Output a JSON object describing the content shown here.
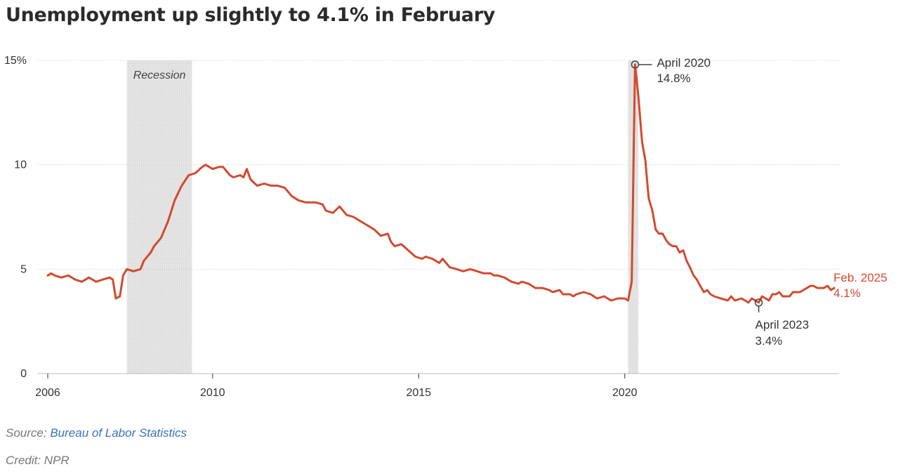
{
  "title": "Unemployment up slightly to 4.1% in February",
  "footer": {
    "source_label": "Source:",
    "source_link": "Bureau of Labor Statistics",
    "credit": "Credit: NPR"
  },
  "colors": {
    "line": "#d24a2f",
    "recession_shade": "#dddddd",
    "grid": "#cccccc",
    "link": "#3c6fbf"
  },
  "chart_data": {
    "type": "line",
    "title": "Unemployment up slightly to 4.1% in February",
    "xlabel": "",
    "ylabel": "",
    "unit": "%",
    "xlim": [
      2006.0,
      2025.2
    ],
    "ylim": [
      0,
      15
    ],
    "grid": true,
    "legend": "none",
    "x_ticks": [
      {
        "value": 2006,
        "label": "2006"
      },
      {
        "value": 2010,
        "label": "2010"
      },
      {
        "value": 2015,
        "label": "2015"
      },
      {
        "value": 2020,
        "label": "2020"
      }
    ],
    "y_ticks": [
      {
        "value": 0,
        "label": "0"
      },
      {
        "value": 5,
        "label": "5"
      },
      {
        "value": 10,
        "label": "10"
      },
      {
        "value": 15,
        "label": "15%"
      }
    ],
    "recessions": [
      {
        "start": 2007.92,
        "end": 2009.5,
        "label": "Recession"
      },
      {
        "start": 2020.08,
        "end": 2020.33,
        "label": ""
      }
    ],
    "annotations": [
      {
        "x": 2020.25,
        "y": 14.8,
        "label": "April 2020",
        "value": "14.8%"
      },
      {
        "x": 2023.25,
        "y": 3.4,
        "label": "April 2023",
        "value": "3.4%"
      },
      {
        "x": 2025.08,
        "y": 4.1,
        "label": "Feb. 2025",
        "value": "4.1%"
      }
    ],
    "series": [
      {
        "values": [
          [
            2006.0,
            4.7
          ],
          [
            2006.08,
            4.8
          ],
          [
            2006.17,
            4.7
          ],
          [
            2006.33,
            4.6
          ],
          [
            2006.5,
            4.7
          ],
          [
            2006.67,
            4.5
          ],
          [
            2006.83,
            4.4
          ],
          [
            2007.0,
            4.6
          ],
          [
            2007.17,
            4.4
          ],
          [
            2007.33,
            4.5
          ],
          [
            2007.5,
            4.6
          ],
          [
            2007.58,
            4.5
          ],
          [
            2007.65,
            3.6
          ],
          [
            2007.75,
            3.7
          ],
          [
            2007.83,
            4.7
          ],
          [
            2007.92,
            5.0
          ],
          [
            2008.08,
            4.9
          ],
          [
            2008.25,
            5.0
          ],
          [
            2008.33,
            5.4
          ],
          [
            2008.5,
            5.8
          ],
          [
            2008.58,
            6.1
          ],
          [
            2008.75,
            6.5
          ],
          [
            2008.92,
            7.3
          ],
          [
            2009.08,
            8.3
          ],
          [
            2009.25,
            9.0
          ],
          [
            2009.42,
            9.5
          ],
          [
            2009.58,
            9.6
          ],
          [
            2009.75,
            9.9
          ],
          [
            2009.83,
            10.0
          ],
          [
            2010.0,
            9.8
          ],
          [
            2010.17,
            9.9
          ],
          [
            2010.25,
            9.9
          ],
          [
            2010.42,
            9.5
          ],
          [
            2010.5,
            9.4
          ],
          [
            2010.67,
            9.5
          ],
          [
            2010.75,
            9.4
          ],
          [
            2010.83,
            9.8
          ],
          [
            2010.92,
            9.3
          ],
          [
            2011.08,
            9.0
          ],
          [
            2011.25,
            9.1
          ],
          [
            2011.42,
            9.0
          ],
          [
            2011.58,
            9.0
          ],
          [
            2011.75,
            8.9
          ],
          [
            2011.92,
            8.5
          ],
          [
            2012.08,
            8.3
          ],
          [
            2012.25,
            8.2
          ],
          [
            2012.5,
            8.2
          ],
          [
            2012.67,
            8.1
          ],
          [
            2012.75,
            7.8
          ],
          [
            2012.92,
            7.7
          ],
          [
            2013.08,
            8.0
          ],
          [
            2013.25,
            7.6
          ],
          [
            2013.42,
            7.5
          ],
          [
            2013.67,
            7.2
          ],
          [
            2013.92,
            6.9
          ],
          [
            2014.08,
            6.6
          ],
          [
            2014.25,
            6.7
          ],
          [
            2014.33,
            6.3
          ],
          [
            2014.42,
            6.1
          ],
          [
            2014.58,
            6.2
          ],
          [
            2014.75,
            5.9
          ],
          [
            2014.92,
            5.6
          ],
          [
            2015.08,
            5.5
          ],
          [
            2015.17,
            5.6
          ],
          [
            2015.33,
            5.5
          ],
          [
            2015.5,
            5.3
          ],
          [
            2015.58,
            5.5
          ],
          [
            2015.75,
            5.1
          ],
          [
            2015.92,
            5.0
          ],
          [
            2016.08,
            4.9
          ],
          [
            2016.25,
            5.0
          ],
          [
            2016.42,
            4.9
          ],
          [
            2016.58,
            4.8
          ],
          [
            2016.75,
            4.8
          ],
          [
            2016.83,
            4.7
          ],
          [
            2016.92,
            4.7
          ],
          [
            2017.08,
            4.6
          ],
          [
            2017.25,
            4.4
          ],
          [
            2017.42,
            4.3
          ],
          [
            2017.5,
            4.4
          ],
          [
            2017.67,
            4.3
          ],
          [
            2017.83,
            4.1
          ],
          [
            2018.0,
            4.1
          ],
          [
            2018.17,
            4.0
          ],
          [
            2018.25,
            3.9
          ],
          [
            2018.42,
            4.0
          ],
          [
            2018.5,
            3.8
          ],
          [
            2018.67,
            3.8
          ],
          [
            2018.75,
            3.7
          ],
          [
            2018.83,
            3.8
          ],
          [
            2019.0,
            3.9
          ],
          [
            2019.17,
            3.8
          ],
          [
            2019.33,
            3.6
          ],
          [
            2019.5,
            3.7
          ],
          [
            2019.67,
            3.5
          ],
          [
            2019.83,
            3.6
          ],
          [
            2020.0,
            3.6
          ],
          [
            2020.08,
            3.5
          ],
          [
            2020.17,
            4.4
          ],
          [
            2020.25,
            14.8
          ],
          [
            2020.33,
            13.3
          ],
          [
            2020.42,
            11.1
          ],
          [
            2020.5,
            10.2
          ],
          [
            2020.58,
            8.4
          ],
          [
            2020.67,
            7.8
          ],
          [
            2020.75,
            6.9
          ],
          [
            2020.83,
            6.7
          ],
          [
            2020.92,
            6.7
          ],
          [
            2021.0,
            6.4
          ],
          [
            2021.08,
            6.2
          ],
          [
            2021.17,
            6.1
          ],
          [
            2021.25,
            6.1
          ],
          [
            2021.33,
            5.8
          ],
          [
            2021.42,
            5.9
          ],
          [
            2021.5,
            5.4
          ],
          [
            2021.58,
            5.1
          ],
          [
            2021.67,
            4.7
          ],
          [
            2021.75,
            4.5
          ],
          [
            2021.83,
            4.2
          ],
          [
            2021.92,
            3.9
          ],
          [
            2022.0,
            4.0
          ],
          [
            2022.08,
            3.8
          ],
          [
            2022.17,
            3.7
          ],
          [
            2022.33,
            3.6
          ],
          [
            2022.5,
            3.5
          ],
          [
            2022.58,
            3.7
          ],
          [
            2022.67,
            3.5
          ],
          [
            2022.83,
            3.6
          ],
          [
            2022.92,
            3.5
          ],
          [
            2023.0,
            3.4
          ],
          [
            2023.08,
            3.6
          ],
          [
            2023.17,
            3.5
          ],
          [
            2023.25,
            3.4
          ],
          [
            2023.33,
            3.7
          ],
          [
            2023.42,
            3.6
          ],
          [
            2023.5,
            3.5
          ],
          [
            2023.58,
            3.8
          ],
          [
            2023.67,
            3.8
          ],
          [
            2023.75,
            3.9
          ],
          [
            2023.83,
            3.7
          ],
          [
            2023.92,
            3.7
          ],
          [
            2024.0,
            3.7
          ],
          [
            2024.08,
            3.9
          ],
          [
            2024.25,
            3.9
          ],
          [
            2024.42,
            4.1
          ],
          [
            2024.5,
            4.2
          ],
          [
            2024.58,
            4.2
          ],
          [
            2024.67,
            4.1
          ],
          [
            2024.83,
            4.1
          ],
          [
            2024.92,
            4.2
          ],
          [
            2025.0,
            4.0
          ],
          [
            2025.08,
            4.1
          ]
        ]
      }
    ]
  }
}
